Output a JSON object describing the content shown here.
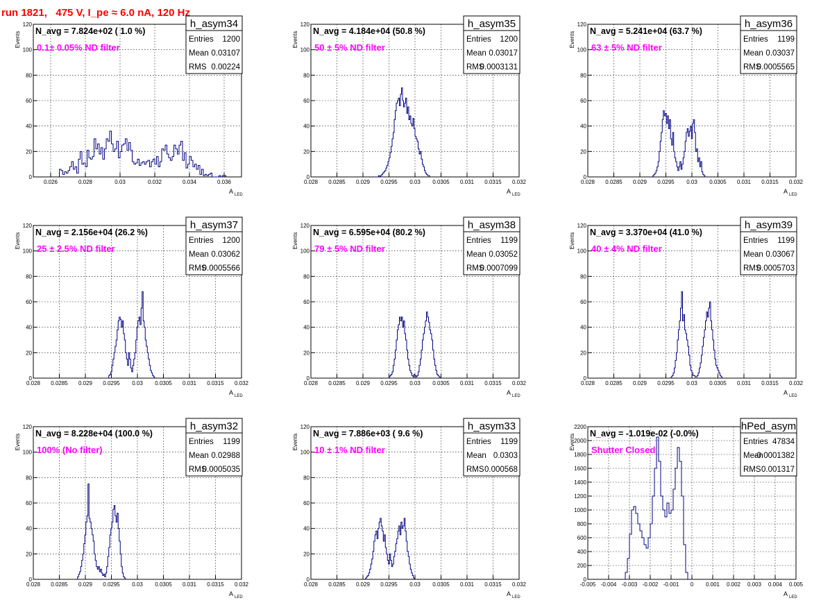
{
  "page": {
    "run_title": "run 1821,   475 V, I_pe ≈ 6.0 nA, 120 Hz"
  },
  "colors": {
    "hist": "#000080",
    "note": "#ff00ff",
    "title": "#ff0000",
    "grid": "#000000"
  },
  "stat_labels": {
    "entries": "Entries",
    "mean": "Mean",
    "rms": "RMS"
  },
  "chart_data": [
    {
      "type": "histogram",
      "name": "h_asym34",
      "navg": "N_avg = 7.824e+02 ( 1.0 %)",
      "note": "0.1± 0.05% ND filter",
      "entries": "1200",
      "mean": "0.03107",
      "rms": "0.00224",
      "xlabel": "A",
      "xlabel_sub": "LED",
      "ylabel": "Events",
      "xlim": [
        0.025,
        0.037
      ],
      "ylim": [
        0,
        120
      ],
      "xticks": [
        0.026,
        0.028,
        0.03,
        0.032,
        0.034,
        0.036
      ],
      "xtick_labels": [
        "0.026",
        "0.028",
        "0.03",
        "0.032",
        "0.034",
        "0.036"
      ],
      "yticks": [
        0,
        20,
        40,
        60,
        80,
        100,
        120
      ],
      "ytick_labels": [
        "0",
        "20",
        "40",
        "60",
        "80",
        "100",
        "120"
      ],
      "bin_start": 0.0265,
      "bin_width": 0.0001,
      "counts": [
        6,
        5,
        2,
        4,
        3,
        5,
        8,
        12,
        6,
        8,
        3,
        14,
        20,
        10,
        11,
        8,
        21,
        15,
        14,
        16,
        30,
        22,
        26,
        18,
        23,
        14,
        22,
        30,
        28,
        36,
        26,
        20,
        22,
        28,
        15,
        20,
        25,
        26,
        30,
        21,
        27,
        21,
        12,
        10,
        11,
        14,
        9,
        11,
        12,
        10,
        12,
        13,
        8,
        12,
        14,
        10,
        16,
        8,
        12,
        22,
        21,
        25,
        18,
        15,
        13,
        16,
        25,
        22,
        18,
        25,
        28,
        13,
        19,
        7,
        10,
        16,
        13,
        8,
        10,
        6,
        9,
        2,
        6,
        1,
        2,
        1,
        2,
        3,
        0,
        0,
        0,
        0,
        1,
        0,
        1,
        1
      ]
    },
    {
      "type": "histogram",
      "name": "h_asym35",
      "navg": "N_avg = 4.184e+04 (50.8 %)",
      "note": "50 ± 5% ND filter",
      "entries": "1200",
      "mean": "0.03017",
      "rms": "0.0003131",
      "xlabel": "A",
      "xlabel_sub": "LED",
      "ylabel": "Events",
      "xlim": [
        0.028,
        0.032
      ],
      "ylim": [
        0,
        120
      ],
      "xticks": [
        0.028,
        0.0285,
        0.029,
        0.0295,
        0.03,
        0.0305,
        0.031,
        0.0315,
        0.032
      ],
      "xtick_labels": [
        "0.028",
        "0.0285",
        "0.029",
        "0.0295",
        "0.03",
        "0.0305",
        "0.031",
        "0.0315",
        "0.032"
      ],
      "yticks": [
        0,
        20,
        40,
        60,
        80,
        100,
        120
      ],
      "ytick_labels": [
        "0",
        "20",
        "40",
        "60",
        "80",
        "100",
        "120"
      ],
      "bin_start": 0.0293,
      "bin_width": 2e-05,
      "counts": [
        1,
        0,
        1,
        2,
        3,
        4,
        5,
        7,
        9,
        12,
        15,
        19,
        24,
        30,
        35,
        45,
        52,
        58,
        60,
        62,
        56,
        65,
        70,
        60,
        55,
        58,
        62,
        50,
        55,
        45,
        48,
        42,
        40,
        46,
        38,
        32,
        30,
        28,
        22,
        18,
        20,
        14,
        10,
        8,
        5,
        3,
        2,
        1,
        1
      ]
    },
    {
      "type": "histogram",
      "name": "h_asym36",
      "navg": "N_avg = 5.241e+04 (63.7 %)",
      "note": "63 ± 5% ND filter",
      "entries": "1199",
      "mean": "0.03037",
      "rms": "0.0005565",
      "xlabel": "A",
      "xlabel_sub": "LED",
      "ylabel": "Events",
      "xlim": [
        0.028,
        0.032
      ],
      "ylim": [
        0,
        120
      ],
      "xticks": [
        0.028,
        0.0285,
        0.029,
        0.0295,
        0.03,
        0.0305,
        0.031,
        0.0315,
        0.032
      ],
      "xtick_labels": [
        "0.028",
        "0.0285",
        "0.029",
        "0.0295",
        "0.03",
        "0.0305",
        "0.031",
        "0.0315",
        "0.032"
      ],
      "yticks": [
        0,
        20,
        40,
        60,
        80,
        100,
        120
      ],
      "ytick_labels": [
        "0",
        "20",
        "40",
        "60",
        "80",
        "100",
        "120"
      ],
      "bin_start": 0.02925,
      "bin_width": 2e-05,
      "counts": [
        1,
        2,
        3,
        5,
        8,
        12,
        20,
        28,
        35,
        45,
        52,
        48,
        50,
        42,
        48,
        38,
        45,
        30,
        25,
        35,
        20,
        15,
        12,
        8,
        5,
        8,
        12,
        6,
        10,
        15,
        20,
        28,
        35,
        38,
        32,
        36,
        40,
        30,
        42,
        45,
        35,
        20,
        22,
        12,
        15,
        8,
        12,
        4,
        2,
        1
      ]
    },
    {
      "type": "histogram",
      "name": "h_asym37",
      "navg": "N_avg = 2.156e+04 (26.2 %)",
      "note": "25 ± 2.5% ND filter",
      "entries": "1200",
      "mean": "0.03062",
      "rms": "0.0005566",
      "xlabel": "A",
      "xlabel_sub": "LED",
      "ylabel": "Events",
      "xlim": [
        0.028,
        0.032
      ],
      "ylim": [
        0,
        120
      ],
      "xticks": [
        0.028,
        0.0285,
        0.029,
        0.0295,
        0.03,
        0.0305,
        0.031,
        0.0315,
        0.032
      ],
      "xtick_labels": [
        "0.028",
        "0.0285",
        "0.029",
        "0.0295",
        "0.03",
        "0.0305",
        "0.031",
        "0.0315",
        "0.032"
      ],
      "yticks": [
        0,
        20,
        40,
        60,
        80,
        100,
        120
      ],
      "ytick_labels": [
        "0",
        "20",
        "40",
        "60",
        "80",
        "100",
        "120"
      ],
      "bin_start": 0.02945,
      "bin_width": 2e-05,
      "counts": [
        2,
        3,
        5,
        10,
        15,
        20,
        25,
        30,
        38,
        45,
        48,
        46,
        40,
        45,
        35,
        30,
        20,
        15,
        10,
        20,
        15,
        8,
        5,
        10,
        15,
        20,
        30,
        40,
        45,
        48,
        42,
        55,
        68,
        45,
        40,
        30,
        25,
        20,
        15,
        10,
        6,
        4,
        2,
        1
      ]
    },
    {
      "type": "histogram",
      "name": "h_asym38",
      "navg": "N_avg = 6.595e+04 (80.2 %)",
      "note": "79 ± 5% ND filter",
      "entries": "1199",
      "mean": "0.03052",
      "rms": "0.0007099",
      "xlabel": "A",
      "xlabel_sub": "LED",
      "ylabel": "Events",
      "xlim": [
        0.028,
        0.032
      ],
      "ylim": [
        0,
        120
      ],
      "xticks": [
        0.028,
        0.0285,
        0.029,
        0.0295,
        0.03,
        0.0305,
        0.031,
        0.0315,
        0.032
      ],
      "xtick_labels": [
        "0.028",
        "0.0285",
        "0.029",
        "0.0295",
        "0.03",
        "0.0305",
        "0.031",
        "0.0315",
        "0.032"
      ],
      "yticks": [
        0,
        20,
        40,
        60,
        80,
        100,
        120
      ],
      "ytick_labels": [
        "0",
        "20",
        "40",
        "60",
        "80",
        "100",
        "120"
      ],
      "bin_start": 0.0295,
      "bin_width": 2e-05,
      "counts": [
        1,
        2,
        3,
        5,
        10,
        15,
        22,
        30,
        38,
        42,
        48,
        45,
        48,
        40,
        45,
        35,
        30,
        22,
        15,
        10,
        6,
        4,
        2,
        1,
        3,
        2,
        1,
        2,
        5,
        10,
        15,
        22,
        30,
        35,
        40,
        45,
        52,
        48,
        44,
        38,
        35,
        30,
        22,
        15,
        10,
        6,
        3,
        2,
        1
      ]
    },
    {
      "type": "histogram",
      "name": "h_asym39",
      "navg": "N_avg = 3.370e+04 (41.0 %)",
      "note": "40 ± 4% ND filter",
      "entries": "1199",
      "mean": "0.03067",
      "rms": "0.0005703",
      "xlabel": "A",
      "xlabel_sub": "LED",
      "ylabel": "Events",
      "xlim": [
        0.028,
        0.032
      ],
      "ylim": [
        0,
        120
      ],
      "xticks": [
        0.028,
        0.0285,
        0.029,
        0.0295,
        0.03,
        0.0305,
        0.031,
        0.0315,
        0.032
      ],
      "xtick_labels": [
        "0.028",
        "0.0285",
        "0.029",
        "0.0295",
        "0.03",
        "0.0305",
        "0.031",
        "0.0315",
        "0.032"
      ],
      "yticks": [
        0,
        20,
        40,
        60,
        80,
        100,
        120
      ],
      "ytick_labels": [
        "0",
        "20",
        "40",
        "60",
        "80",
        "100",
        "120"
      ],
      "bin_start": 0.0296,
      "bin_width": 2e-05,
      "counts": [
        1,
        2,
        4,
        8,
        14,
        20,
        30,
        38,
        45,
        55,
        68,
        45,
        50,
        38,
        35,
        30,
        25,
        18,
        10,
        6,
        4,
        2,
        2,
        1,
        1,
        2,
        4,
        8,
        12,
        18,
        25,
        32,
        38,
        45,
        52,
        48,
        55,
        60,
        45,
        38,
        30,
        22,
        15,
        10,
        8,
        6,
        4,
        2,
        1
      ]
    },
    {
      "type": "histogram",
      "name": "h_asym32",
      "navg": "N_avg = 8.228e+04 (100.0 %)",
      "note": "100% (No filter)",
      "entries": "1199",
      "mean": "0.02988",
      "rms": "0.0005035",
      "xlabel": "A",
      "xlabel_sub": "LED",
      "ylabel": "Events",
      "xlim": [
        0.028,
        0.032
      ],
      "ylim": [
        0,
        120
      ],
      "xticks": [
        0.028,
        0.0285,
        0.029,
        0.0295,
        0.03,
        0.0305,
        0.031,
        0.0315,
        0.032
      ],
      "xtick_labels": [
        "0.028",
        "0.0285",
        "0.029",
        "0.0295",
        "0.03",
        "0.0305",
        "0.031",
        "0.0315",
        "0.032"
      ],
      "yticks": [
        0,
        20,
        40,
        60,
        80,
        100,
        120
      ],
      "ytick_labels": [
        "0",
        "20",
        "40",
        "60",
        "80",
        "100",
        "120"
      ],
      "bin_start": 0.02885,
      "bin_width": 2e-05,
      "counts": [
        2,
        4,
        6,
        10,
        15,
        20,
        28,
        35,
        45,
        50,
        75,
        48,
        45,
        40,
        35,
        30,
        20,
        15,
        10,
        8,
        10,
        6,
        8,
        5,
        3,
        4,
        2,
        5,
        10,
        18,
        25,
        35,
        40,
        45,
        55,
        58,
        50,
        45,
        52,
        40,
        30,
        20,
        10,
        5,
        2,
        1
      ]
    },
    {
      "type": "histogram",
      "name": "h_asym33",
      "navg": "N_avg = 7.886e+03 ( 9.6 %)",
      "note": "10 ± 1% ND filter",
      "entries": "1199",
      "mean": "0.0303",
      "rms": "0.000568",
      "xlabel": "A",
      "xlabel_sub": "LED",
      "ylabel": "Events",
      "xlim": [
        0.028,
        0.032
      ],
      "ylim": [
        0,
        120
      ],
      "xticks": [
        0.028,
        0.0285,
        0.029,
        0.0295,
        0.03,
        0.0305,
        0.031,
        0.0315,
        0.032
      ],
      "xtick_labels": [
        "0.028",
        "0.0285",
        "0.029",
        "0.0295",
        "0.03",
        "0.0305",
        "0.031",
        "0.0315",
        "0.032"
      ],
      "yticks": [
        0,
        20,
        40,
        60,
        80,
        100,
        120
      ],
      "ytick_labels": [
        "0",
        "20",
        "40",
        "60",
        "80",
        "100",
        "120"
      ],
      "bin_start": 0.02905,
      "bin_width": 2e-05,
      "counts": [
        1,
        2,
        3,
        5,
        8,
        12,
        16,
        22,
        30,
        35,
        38,
        32,
        40,
        45,
        48,
        42,
        38,
        30,
        35,
        25,
        20,
        15,
        12,
        20,
        15,
        10,
        12,
        18,
        22,
        28,
        32,
        38,
        42,
        35,
        45,
        40,
        42,
        48,
        38,
        30,
        22,
        18,
        12,
        8,
        5,
        3,
        1
      ]
    },
    {
      "type": "histogram",
      "name": "hPed_asym",
      "navg": "N_avg = -1.019e-02 (-0.0%)",
      "note": "Shutter Closed",
      "entries": "47834",
      "mean": "-0.0001382",
      "rms": "0.001317",
      "xlabel": "A",
      "xlabel_sub": "LED",
      "ylabel": "Events",
      "xlim": [
        -0.005,
        0.005
      ],
      "ylim": [
        0,
        2200
      ],
      "xticks": [
        -0.005,
        -0.004,
        -0.003,
        -0.002,
        -0.001,
        0,
        0.001,
        0.002,
        0.003,
        0.004,
        0.005
      ],
      "xtick_labels": [
        "-0.005",
        "-0.004",
        "-0.003",
        "-0.002",
        "-0.001",
        "0",
        "0.001",
        "0.002",
        "0.003",
        "0.004",
        "0.005"
      ],
      "yticks": [
        0,
        200,
        400,
        600,
        800,
        1000,
        1200,
        1400,
        1600,
        1800,
        2000,
        2200
      ],
      "ytick_labels": [
        "0",
        "200",
        "400",
        "600",
        "800",
        "1000",
        "1200",
        "1400",
        "1600",
        "1800",
        "2000",
        "2200"
      ],
      "bin_start": -0.0032,
      "bin_width": 0.0001,
      "counts": [
        100,
        300,
        650,
        1000,
        1050,
        950,
        800,
        700,
        600,
        500,
        450,
        600,
        800,
        1200,
        1600,
        2050,
        1700,
        1200,
        1000,
        900,
        1100,
        950,
        1000,
        1300,
        1600,
        1900,
        1700,
        1200,
        500,
        100
      ]
    }
  ]
}
